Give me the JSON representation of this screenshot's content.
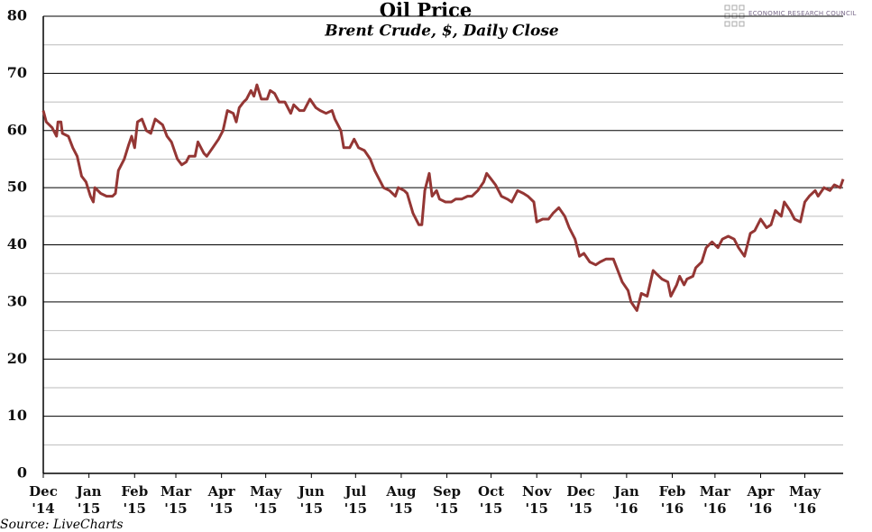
{
  "chart_data": {
    "type": "line",
    "title": "Oil Price",
    "subtitle": "Brent Crude, $, Daily Close",
    "source": "Source: LiveCharts",
    "logo": "Economic Research Council",
    "x": [
      0,
      2,
      6,
      9,
      10,
      12,
      13,
      17,
      20,
      23,
      26,
      29,
      32,
      34,
      35,
      39,
      43,
      47,
      49,
      51,
      55,
      58,
      60,
      62,
      64,
      67,
      70,
      73,
      76,
      81,
      84,
      87,
      91,
      94,
      97,
      99,
      103,
      105,
      109,
      111,
      115,
      119,
      122,
      125,
      129,
      131,
      133,
      136,
      138,
      141,
      143,
      145,
      148,
      152,
      154,
      157,
      160,
      164,
      168,
      170,
      174,
      177,
      181,
      185,
      188,
      192,
      196,
      198,
      202,
      204,
      208,
      211,
      214,
      218,
      222,
      225,
      228,
      231,
      235,
      239,
      241,
      245,
      247,
      251,
      255,
      257,
      259,
      262,
      264,
      267,
      269,
      273,
      277,
      280,
      284,
      288,
      291,
      295,
      299,
      301,
      304,
      307,
      311,
      315,
      318,
      322,
      326,
      329,
      333,
      335,
      339,
      343,
      346,
      350,
      354,
      357,
      361,
      364,
      367,
      371,
      375,
      378,
      382,
      387,
      390,
      393,
      397,
      399,
      403,
      406,
      410,
      414,
      416,
      420,
      424,
      426,
      430,
      432,
      435,
      437,
      441,
      443,
      447,
      450,
      454,
      458,
      461,
      465,
      469,
      472,
      476,
      480,
      483,
      487,
      491,
      494,
      497,
      501,
      503,
      507,
      510,
      514,
      517,
      520,
      524,
      526,
      530,
      534,
      537,
      541,
      543
    ],
    "series": [
      {
        "name": "Brent Crude",
        "color": "#943634",
        "values": [
          63.5,
          61.5,
          60.5,
          59,
          61.5,
          61.5,
          59.5,
          59,
          57,
          55.5,
          52,
          51,
          48.5,
          47.5,
          50,
          49,
          48.5,
          48.5,
          49,
          53,
          55,
          57.5,
          59,
          57,
          61.5,
          62,
          60,
          59.5,
          62,
          61,
          59,
          58,
          55,
          54,
          54.5,
          55.5,
          55.5,
          58,
          56,
          55.5,
          57,
          58.5,
          60,
          63.5,
          63,
          61.5,
          64,
          65,
          65.5,
          67,
          66,
          68,
          65.5,
          65.5,
          67,
          66.5,
          65,
          65,
          63,
          64.5,
          63.5,
          63.5,
          65.5,
          64,
          63.5,
          63,
          63.5,
          62,
          60,
          57,
          57,
          58.5,
          57,
          56.5,
          55,
          53,
          51.5,
          50,
          49.5,
          48.5,
          50,
          49.5,
          49,
          45.5,
          43.5,
          43.5,
          49.5,
          52.5,
          48.5,
          49.5,
          48,
          47.5,
          47.5,
          48,
          48,
          48.5,
          48.5,
          49.5,
          51,
          52.5,
          51.5,
          50.5,
          48.5,
          48,
          47.5,
          49.5,
          49,
          48.5,
          47.5,
          44,
          44.5,
          44.5,
          45.5,
          46.5,
          45,
          43,
          41,
          38,
          38.5,
          37,
          36.5,
          37,
          37.5,
          37.5,
          35.5,
          33.5,
          32,
          30,
          28.5,
          31.5,
          31,
          35.5,
          35,
          34,
          33.5,
          31,
          33,
          34.5,
          33,
          34,
          34.5,
          36,
          37,
          39.5,
          40.5,
          39.5,
          41,
          41.5,
          41,
          39.5,
          38,
          42,
          42.5,
          44.5,
          43,
          43.5,
          46,
          45,
          47.5,
          46,
          44.5,
          44,
          47.5,
          48.5,
          49.5,
          48.5,
          50,
          49.5,
          50.5,
          50,
          51.5
        ]
      }
    ],
    "xlim": [
      0,
      543
    ],
    "xticks": [
      {
        "value": 0,
        "label": "Dec"
      },
      {
        "value": 31,
        "label": "Jan"
      },
      {
        "value": 62,
        "label": "Feb"
      },
      {
        "value": 90,
        "label": "Mar"
      },
      {
        "value": 121,
        "label": "Apr"
      },
      {
        "value": 151,
        "label": "May"
      },
      {
        "value": 182,
        "label": "Jun"
      },
      {
        "value": 212,
        "label": "Jul"
      },
      {
        "value": 243,
        "label": "Aug"
      },
      {
        "value": 274,
        "label": "Sep"
      },
      {
        "value": 304,
        "label": "Oct"
      },
      {
        "value": 335,
        "label": "Nov"
      },
      {
        "value": 365,
        "label": "Dec"
      },
      {
        "value": 396,
        "label": "Jan"
      },
      {
        "value": 427,
        "label": "Feb"
      },
      {
        "value": 456,
        "label": "Mar"
      },
      {
        "value": 487,
        "label": "Apr"
      },
      {
        "value": 517,
        "label": "May"
      }
    ],
    "xtick_years": [
      "'14",
      "'15",
      "'15",
      "'15",
      "'15",
      "'15",
      "'15",
      "'15",
      "'15",
      "'15",
      "'15",
      "'15",
      "'15",
      "'16",
      "'16",
      "'16",
      "'16",
      "'16"
    ],
    "ylim": [
      0,
      80
    ],
    "yticks": [
      0,
      10,
      20,
      30,
      40,
      50,
      60,
      70,
      80
    ],
    "yminor": [
      5,
      15,
      25,
      35,
      45,
      55,
      65,
      75
    ],
    "grid": true
  }
}
